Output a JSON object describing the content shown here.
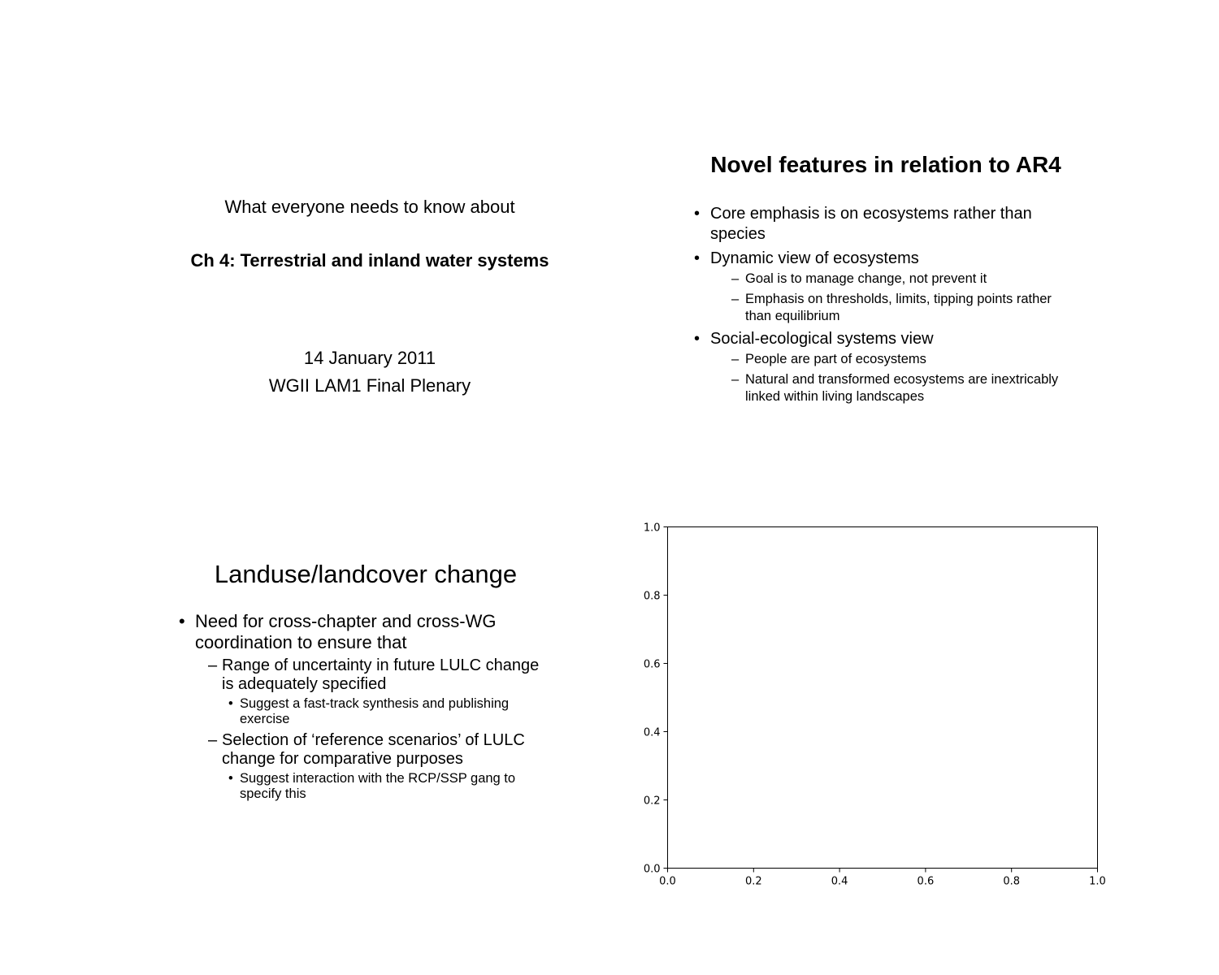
{
  "slide1": {
    "intro": "What everyone needs to know about",
    "chapter": "Ch 4: Terrestrial and inland water systems",
    "date": "14 January 2011",
    "event": "WGII LAM1 Final Plenary"
  },
  "slide2": {
    "title": "Novel features in relation to AR4",
    "bullets": [
      {
        "text": "Core emphasis is on ecosystems rather than species",
        "sub": []
      },
      {
        "text": "Dynamic view of ecosystems",
        "sub": [
          "Goal is to manage change, not prevent it",
          "Emphasis on thresholds, limits, tipping points rather than equilibrium"
        ]
      },
      {
        "text": "Social-ecological systems view",
        "sub": [
          "People are part of ecosystems",
          "Natural and transformed ecosystems are inextricably linked within living landscapes"
        ]
      }
    ]
  },
  "slide3": {
    "title": "Landuse/landcover change",
    "bullet": "Need for cross-chapter and cross-WG coordination to ensure that",
    "sub": [
      {
        "text": "Range of uncertainty in future LULC change is adequately specified",
        "sub": [
          "Suggest a fast-track synthesis and publishing exercise"
        ]
      },
      {
        "text": "Selection of ‘reference scenarios’ of LULC change for comparative purposes",
        "sub": [
          "Suggest interaction with the RCP/SSP gang to specify this"
        ]
      }
    ]
  },
  "chart_data": {
    "type": "scatter",
    "x": [],
    "y": [],
    "xlim": [
      0.0,
      1.0
    ],
    "ylim": [
      0.0,
      1.0
    ],
    "xticks": [
      "0.0",
      "0.2",
      "0.4",
      "0.6",
      "0.8",
      "1.0"
    ],
    "yticks": [
      "0.0",
      "0.2",
      "0.4",
      "0.6",
      "0.8",
      "1.0"
    ],
    "title": "",
    "xlabel": "",
    "ylabel": "",
    "grid": false
  }
}
